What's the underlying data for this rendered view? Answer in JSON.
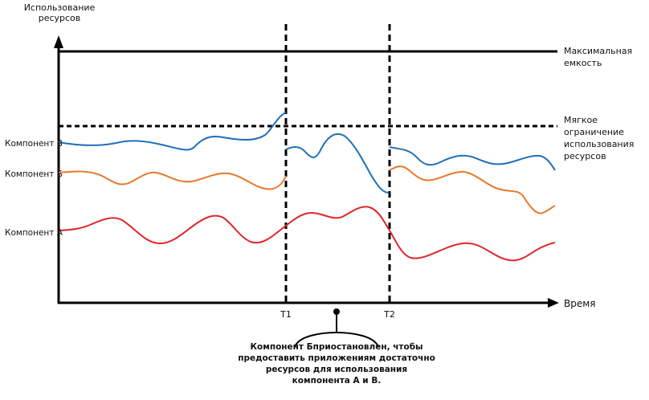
{
  "axes": {
    "y_label": "Использование ресурсов",
    "x_label": "Время"
  },
  "thresholds": {
    "max_capacity": "Максимальная емкость",
    "soft_limit": "Мягкое ограничение использования ресурсов"
  },
  "components": [
    {
      "key": "v",
      "label": "Компонент В",
      "color": "#1f6fb6"
    },
    {
      "key": "b",
      "label": "Компонент Б",
      "color": "#e8792c"
    },
    {
      "key": "a",
      "label": "Компонент А",
      "color": "#e0262b"
    }
  ],
  "markers": {
    "t1": "T1",
    "t2": "T2"
  },
  "callout": "Компонент Бприостановлен, чтобы предоставить приложениям достаточно ресурсов для использования компонента А и В.",
  "colors": {
    "axis": "#000000",
    "background": "#ffffff"
  }
}
